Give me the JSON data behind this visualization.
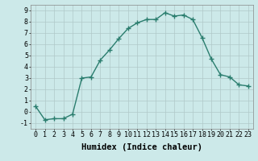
{
  "xlabel": "Humidex (Indice chaleur)",
  "ylabel": "",
  "x": [
    0,
    1,
    2,
    3,
    4,
    5,
    6,
    7,
    8,
    9,
    10,
    11,
    12,
    13,
    14,
    15,
    16,
    17,
    18,
    19,
    20,
    21,
    22,
    23
  ],
  "y": [
    0.5,
    -0.7,
    -0.6,
    -0.6,
    -0.2,
    3.0,
    3.1,
    4.6,
    5.5,
    6.5,
    7.4,
    7.9,
    8.2,
    8.2,
    8.8,
    8.5,
    8.6,
    8.2,
    6.6,
    4.7,
    3.3,
    3.1,
    2.4,
    2.3
  ],
  "line_color": "#2a7d6e",
  "marker": "+",
  "marker_color": "#2a7d6e",
  "background_color": "#cce9e9",
  "grid_color": "#b0c8c8",
  "ylim": [
    -1.5,
    9.5
  ],
  "xlim": [
    -0.5,
    23.5
  ],
  "yticks": [
    -1,
    0,
    1,
    2,
    3,
    4,
    5,
    6,
    7,
    8,
    9
  ],
  "xticks": [
    0,
    1,
    2,
    3,
    4,
    5,
    6,
    7,
    8,
    9,
    10,
    11,
    12,
    13,
    14,
    15,
    16,
    17,
    18,
    19,
    20,
    21,
    22,
    23
  ],
  "xlabel_fontsize": 7.5,
  "tick_fontsize": 6,
  "line_width": 1.0,
  "marker_size": 4
}
